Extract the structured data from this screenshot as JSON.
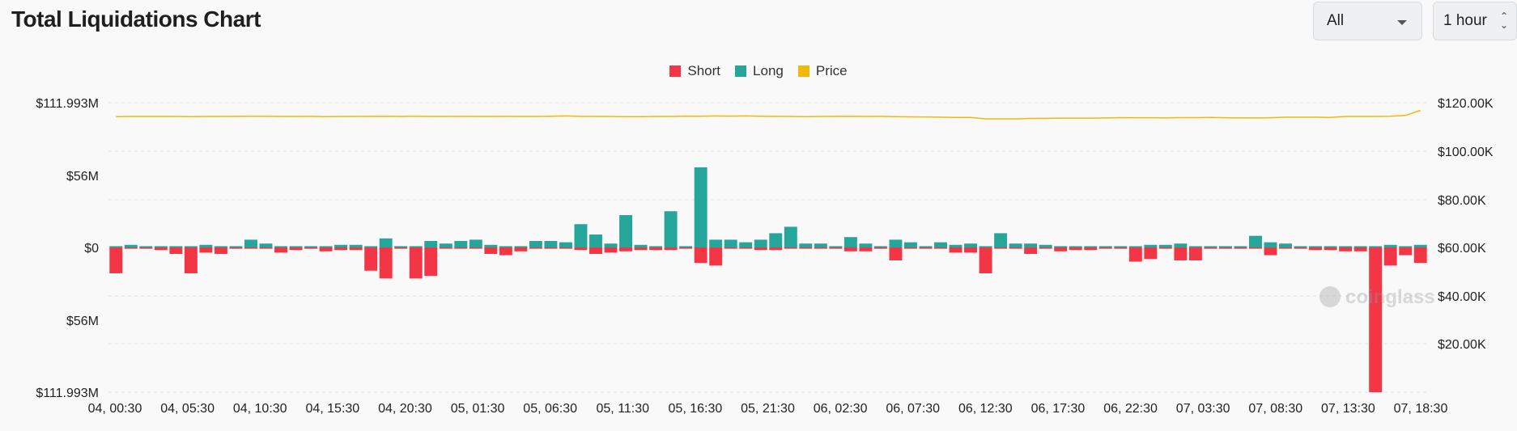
{
  "header": {
    "title": "Total Liquidations Chart",
    "filter_value": "All",
    "interval_value": "1 hour"
  },
  "colors": {
    "short": "#f23645",
    "long": "#26a69a",
    "price": "#f0b90b"
  },
  "chart_data": {
    "type": "bar",
    "title": "Total Liquidations Chart",
    "legend": [
      "Short",
      "Long",
      "Price"
    ],
    "legend_position": "top-center",
    "y_left_ticks": [
      "$111.993M",
      "$56M",
      "$0",
      "$56M",
      "$111.993M"
    ],
    "y_left_range": [
      -111.993,
      111.993
    ],
    "y_right_ticks": [
      "$120.00K",
      "$100.00K",
      "$80.00K",
      "$60.00K",
      "$40.00K",
      "$20.00K"
    ],
    "y_right_range": [
      0,
      120000
    ],
    "x_tick_labels": [
      "04, 00:30",
      "04, 05:30",
      "04, 10:30",
      "04, 15:30",
      "04, 20:30",
      "05, 01:30",
      "05, 06:30",
      "05, 11:30",
      "05, 16:30",
      "05, 21:30",
      "06, 02:30",
      "06, 07:30",
      "06, 12:30",
      "06, 17:30",
      "06, 22:30",
      "07, 03:30",
      "07, 08:30",
      "07, 13:30",
      "07, 18:30"
    ],
    "grid": true,
    "series": [
      {
        "name": "Long",
        "unit": "$M",
        "values": [
          1,
          2,
          1,
          1,
          1,
          1,
          2,
          1,
          1,
          6,
          3,
          1,
          1,
          1,
          1,
          2,
          2,
          1,
          7,
          1,
          1,
          5,
          3,
          5,
          6,
          2,
          1,
          1,
          5,
          5,
          4,
          18,
          10,
          3,
          25,
          2,
          1,
          28,
          1,
          62,
          6,
          6,
          4,
          6,
          11,
          16,
          3,
          3,
          1,
          8,
          3,
          1,
          6,
          4,
          1,
          4,
          2,
          3,
          1,
          11,
          3,
          3,
          2,
          1,
          1,
          1,
          1,
          1,
          1,
          2,
          2,
          3,
          1,
          1,
          1,
          1,
          9,
          4,
          3,
          1,
          1,
          1,
          1,
          1,
          1,
          2,
          1,
          2
        ]
      },
      {
        "name": "Short",
        "unit": "$M",
        "values": [
          20,
          1,
          1,
          2,
          5,
          20,
          4,
          5,
          1,
          1,
          1,
          4,
          2,
          1,
          3,
          2,
          2,
          18,
          24,
          1,
          24,
          22,
          1,
          1,
          1,
          5,
          6,
          3,
          1,
          1,
          1,
          2,
          5,
          4,
          3,
          2,
          2,
          2,
          1,
          12,
          14,
          1,
          1,
          2,
          2,
          1,
          1,
          1,
          1,
          3,
          3,
          1,
          10,
          1,
          1,
          1,
          4,
          4,
          20,
          1,
          1,
          5,
          1,
          3,
          2,
          2,
          1,
          1,
          11,
          9,
          1,
          10,
          10,
          1,
          1,
          1,
          1,
          6,
          1,
          1,
          2,
          2,
          3,
          3,
          112,
          14,
          6,
          12
        ]
      },
      {
        "name": "Price",
        "unit": "USD",
        "values": [
          114200,
          114300,
          114300,
          114300,
          114300,
          114250,
          114300,
          114300,
          114350,
          114400,
          114400,
          114300,
          114300,
          114350,
          114200,
          114300,
          114300,
          114350,
          114400,
          114300,
          114400,
          114300,
          114300,
          114350,
          114300,
          114300,
          114350,
          114300,
          114300,
          114400,
          114500,
          114350,
          114300,
          114300,
          114200,
          114250,
          114300,
          114300,
          114450,
          114400,
          114500,
          114450,
          114500,
          114400,
          114350,
          114300,
          114200,
          114300,
          114350,
          114400,
          114300,
          114350,
          114250,
          114150,
          114100,
          114000,
          113900,
          113850,
          113300,
          113300,
          113300,
          113450,
          113500,
          113600,
          113600,
          113600,
          113650,
          113800,
          113750,
          113750,
          113700,
          113800,
          113800,
          113850,
          113750,
          113700,
          113650,
          113750,
          114000,
          114000,
          114000,
          113900,
          114300,
          114300,
          114300,
          114400,
          114700,
          116800
        ]
      }
    ]
  }
}
